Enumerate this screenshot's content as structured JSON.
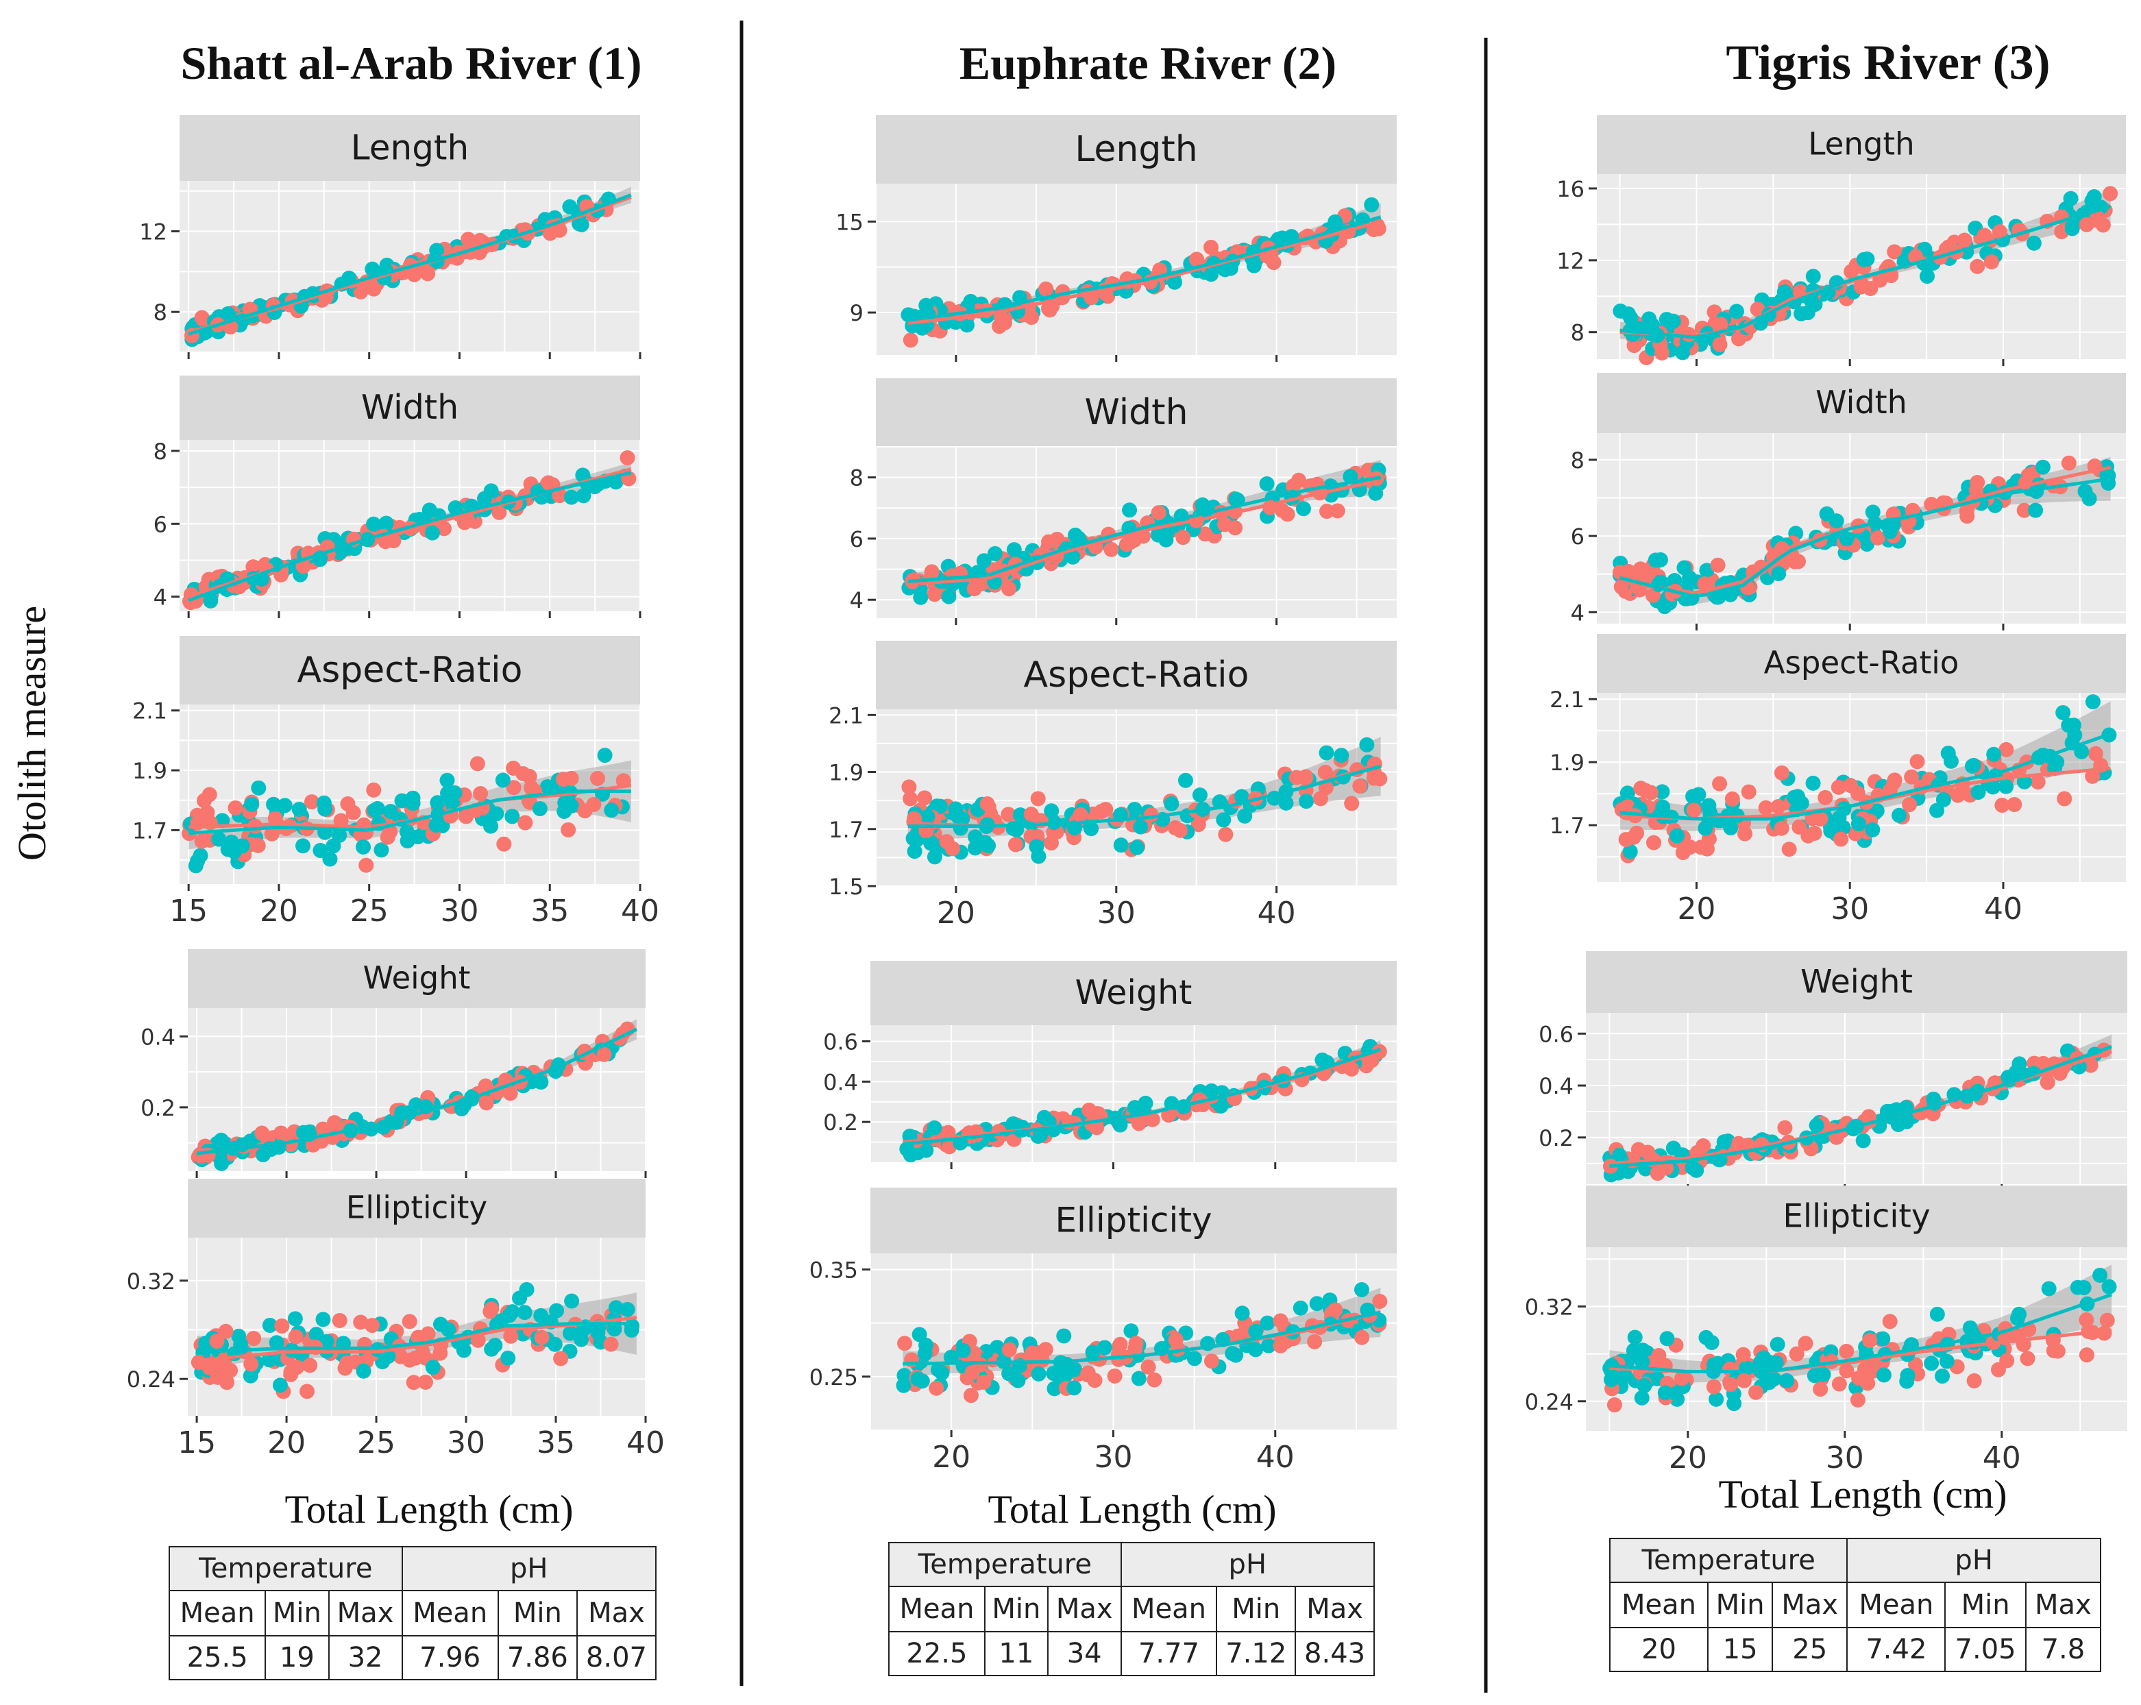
{
  "figure": {
    "ylabel": "Otolith measure",
    "xlabel": "Total Length (cm)",
    "colors": {
      "series_a": "#f8766d",
      "series_b": "#00bfc4",
      "panel_bg": "#ebebeb",
      "strip_bg": "#d9d9d9",
      "grid": "#ffffff",
      "ribbon": "#999999"
    }
  },
  "rivers": [
    {
      "title": "Shatt al-Arab River (1)",
      "table": {
        "headers": [
          "Temperature",
          "pH"
        ],
        "subheaders": [
          "Mean",
          "Min",
          "Max",
          "Mean",
          "Min",
          "Max"
        ],
        "values": [
          "25.5",
          "19",
          "32",
          "7.96",
          "7.86",
          "8.07"
        ]
      }
    },
    {
      "title": "Euphrate River (2)",
      "table": {
        "headers": [
          "Temperature",
          "pH"
        ],
        "subheaders": [
          "Mean",
          "Min",
          "Max",
          "Mean",
          "Min",
          "Max"
        ],
        "values": [
          "22.5",
          "11",
          "34",
          "7.77",
          "7.12",
          "8.43"
        ]
      }
    },
    {
      "title": "Tigris River (3)",
      "table": {
        "headers": [
          "Temperature",
          "pH"
        ],
        "subheaders": [
          "Mean",
          "Min",
          "Max",
          "Mean",
          "Min",
          "Max"
        ],
        "values": [
          "20",
          "15",
          "25",
          "7.42",
          "7.05",
          "7.8"
        ]
      }
    }
  ],
  "chart_data": [
    {
      "type": "scatter",
      "river": "Shatt al-Arab River (1)",
      "title": "Length",
      "xlim": [
        14.5,
        40
      ],
      "ylim": [
        6,
        14.5
      ],
      "yticks": [
        8,
        12
      ],
      "xticks": [
        15,
        20,
        25,
        30,
        35,
        40
      ],
      "show_x_tick_labels": false,
      "x_range": [
        15,
        39.5
      ],
      "trend_a": [
        [
          15,
          7.0
        ],
        [
          20,
          8.2
        ],
        [
          25,
          9.6
        ],
        [
          30,
          10.9
        ],
        [
          35,
          12.2
        ],
        [
          39.5,
          13.7
        ]
      ],
      "trend_b": [
        [
          15,
          6.9
        ],
        [
          20,
          8.3
        ],
        [
          25,
          9.7
        ],
        [
          30,
          10.9
        ],
        [
          35,
          12.3
        ],
        [
          39.5,
          13.8
        ]
      ],
      "spread": 0.35,
      "n": 90
    },
    {
      "type": "scatter",
      "river": "Shatt al-Arab River (1)",
      "title": "Width",
      "xlim": [
        14.5,
        40
      ],
      "ylim": [
        3.6,
        8.3
      ],
      "yticks": [
        4,
        6,
        8
      ],
      "xticks": [
        15,
        20,
        25,
        30,
        35,
        40
      ],
      "show_x_tick_labels": false,
      "x_range": [
        15,
        39.5
      ],
      "trend_a": [
        [
          15,
          4.0
        ],
        [
          20,
          4.8
        ],
        [
          25,
          5.6
        ],
        [
          30,
          6.2
        ],
        [
          35,
          6.9
        ],
        [
          39.5,
          7.5
        ]
      ],
      "trend_b": [
        [
          15,
          3.9
        ],
        [
          20,
          4.8
        ],
        [
          25,
          5.6
        ],
        [
          30,
          6.3
        ],
        [
          35,
          6.9
        ],
        [
          39.5,
          7.4
        ]
      ],
      "spread": 0.25,
      "n": 90
    },
    {
      "type": "scatter",
      "river": "Shatt al-Arab River (1)",
      "title": "Aspect-Ratio",
      "xlim": [
        14.5,
        40
      ],
      "ylim": [
        1.52,
        2.12
      ],
      "yticks": [
        1.7,
        1.9,
        2.1
      ],
      "yticklabels": [
        "1.7",
        "1.9",
        "2.1"
      ],
      "xticks": [
        15,
        20,
        25,
        30,
        35,
        40
      ],
      "show_x_tick_labels": true,
      "x_range": [
        15,
        39.5
      ],
      "trend_a": [
        [
          15,
          1.71
        ],
        [
          20,
          1.72
        ],
        [
          25,
          1.71
        ],
        [
          28,
          1.74
        ],
        [
          32,
          1.8
        ],
        [
          36,
          1.82
        ],
        [
          39.5,
          1.85
        ]
      ],
      "trend_b": [
        [
          15,
          1.69
        ],
        [
          20,
          1.71
        ],
        [
          25,
          1.7
        ],
        [
          28,
          1.74
        ],
        [
          32,
          1.8
        ],
        [
          36,
          1.83
        ],
        [
          39.5,
          1.83
        ]
      ],
      "spread": 0.09,
      "n": 80
    },
    {
      "type": "scatter",
      "river": "Shatt al-Arab River (1)",
      "title": "Weight",
      "xlim": [
        14.5,
        40
      ],
      "ylim": [
        0.02,
        0.48
      ],
      "yticks": [
        0.2,
        0.4
      ],
      "xticks": [
        15,
        20,
        25,
        30,
        35,
        40
      ],
      "show_x_tick_labels": false,
      "x_range": [
        15,
        39.5
      ],
      "trend_a": [
        [
          15,
          0.07
        ],
        [
          20,
          0.1
        ],
        [
          25,
          0.15
        ],
        [
          30,
          0.22
        ],
        [
          35,
          0.31
        ],
        [
          39.5,
          0.42
        ]
      ],
      "trend_b": [
        [
          15,
          0.07
        ],
        [
          20,
          0.1
        ],
        [
          25,
          0.15
        ],
        [
          30,
          0.22
        ],
        [
          35,
          0.31
        ],
        [
          39.5,
          0.42
        ]
      ],
      "spread": 0.025,
      "n": 80
    },
    {
      "type": "scatter",
      "river": "Shatt al-Arab River (1)",
      "title": "Ellipticity",
      "xlim": [
        14.5,
        40
      ],
      "ylim": [
        0.21,
        0.355
      ],
      "yticks": [
        0.24,
        0.32
      ],
      "xticks": [
        15,
        20,
        25,
        30,
        35,
        40
      ],
      "show_x_tick_labels": true,
      "x_range": [
        15,
        39.5
      ],
      "trend_a": [
        [
          15,
          0.255
        ],
        [
          20,
          0.262
        ],
        [
          25,
          0.262
        ],
        [
          28,
          0.268
        ],
        [
          32,
          0.28
        ],
        [
          36,
          0.284
        ],
        [
          39.5,
          0.29
        ]
      ],
      "trend_b": [
        [
          15,
          0.262
        ],
        [
          20,
          0.265
        ],
        [
          25,
          0.265
        ],
        [
          28,
          0.27
        ],
        [
          32,
          0.283
        ],
        [
          36,
          0.285
        ],
        [
          39.5,
          0.285
        ]
      ],
      "spread": 0.022,
      "n": 80
    },
    {
      "type": "scatter",
      "river": "Euphrate River (2)",
      "title": "Length",
      "xlim": [
        15,
        47.5
      ],
      "ylim": [
        6.2,
        17.5
      ],
      "yticks": [
        9,
        15
      ],
      "xticks": [
        20,
        30,
        40
      ],
      "show_x_tick_labels": false,
      "x_range": [
        17,
        46.5
      ],
      "trend_a": [
        [
          17,
          8.3
        ],
        [
          22,
          8.9
        ],
        [
          27,
          10.0
        ],
        [
          32,
          11.0
        ],
        [
          37,
          12.4
        ],
        [
          42,
          13.7
        ],
        [
          46.5,
          15.0
        ]
      ],
      "trend_b": [
        [
          17,
          8.5
        ],
        [
          22,
          9.2
        ],
        [
          27,
          10.3
        ],
        [
          32,
          11.2
        ],
        [
          37,
          12.5
        ],
        [
          42,
          13.9
        ],
        [
          46.5,
          15.3
        ]
      ],
      "spread": 0.8,
      "n": 90
    },
    {
      "type": "scatter",
      "river": "Euphrate River (2)",
      "title": "Width",
      "xlim": [
        15,
        47.5
      ],
      "ylim": [
        3.4,
        9.0
      ],
      "yticks": [
        4,
        6,
        8
      ],
      "xticks": [
        20,
        30,
        40
      ],
      "show_x_tick_labels": false,
      "x_range": [
        17,
        46.5
      ],
      "trend_a": [
        [
          17,
          4.5
        ],
        [
          22,
          4.7
        ],
        [
          27,
          5.6
        ],
        [
          32,
          6.3
        ],
        [
          37,
          6.8
        ],
        [
          42,
          7.4
        ],
        [
          46.5,
          7.9
        ]
      ],
      "trend_b": [
        [
          17,
          4.6
        ],
        [
          22,
          4.8
        ],
        [
          27,
          5.7
        ],
        [
          32,
          6.4
        ],
        [
          37,
          7.0
        ],
        [
          42,
          7.6
        ],
        [
          46.5,
          8.0
        ]
      ],
      "spread": 0.5,
      "n": 90
    },
    {
      "type": "scatter",
      "river": "Euphrate River (2)",
      "title": "Aspect-Ratio",
      "xlim": [
        15,
        47.5
      ],
      "ylim": [
        1.5,
        2.12
      ],
      "yticks": [
        1.5,
        1.7,
        1.9,
        2.1
      ],
      "yticklabels": [
        "1.5",
        "1.7",
        "1.9",
        "2.1"
      ],
      "xticks": [
        20,
        30,
        40
      ],
      "show_x_tick_labels": true,
      "x_range": [
        17,
        46.5
      ],
      "trend_a": [
        [
          17,
          1.72
        ],
        [
          22,
          1.71
        ],
        [
          27,
          1.72
        ],
        [
          32,
          1.74
        ],
        [
          37,
          1.78
        ],
        [
          42,
          1.85
        ],
        [
          46.5,
          1.93
        ]
      ],
      "trend_b": [
        [
          17,
          1.71
        ],
        [
          22,
          1.71
        ],
        [
          27,
          1.72
        ],
        [
          32,
          1.74
        ],
        [
          37,
          1.78
        ],
        [
          42,
          1.85
        ],
        [
          46.5,
          1.92
        ]
      ],
      "spread": 0.09,
      "n": 90
    },
    {
      "type": "scatter",
      "river": "Euphrate River (2)",
      "title": "Weight",
      "xlim": [
        15,
        47.5
      ],
      "ylim": [
        0.0,
        0.68
      ],
      "yticks": [
        0.2,
        0.4,
        0.6
      ],
      "xticks": [
        20,
        30,
        40
      ],
      "show_x_tick_labels": false,
      "x_range": [
        17,
        46.5
      ],
      "trend_a": [
        [
          17,
          0.1
        ],
        [
          22,
          0.14
        ],
        [
          27,
          0.18
        ],
        [
          32,
          0.24
        ],
        [
          37,
          0.33
        ],
        [
          42,
          0.43
        ],
        [
          46.5,
          0.55
        ]
      ],
      "trend_b": [
        [
          17,
          0.09
        ],
        [
          22,
          0.13
        ],
        [
          27,
          0.18
        ],
        [
          32,
          0.24
        ],
        [
          37,
          0.33
        ],
        [
          42,
          0.44
        ],
        [
          46.5,
          0.56
        ]
      ],
      "spread": 0.04,
      "n": 90
    },
    {
      "type": "scatter",
      "river": "Euphrate River (2)",
      "title": "Ellipticity",
      "xlim": [
        15,
        47.5
      ],
      "ylim": [
        0.2,
        0.365
      ],
      "yticks": [
        0.25,
        0.35
      ],
      "xticks": [
        20,
        30,
        40
      ],
      "show_x_tick_labels": true,
      "x_range": [
        17,
        46.5
      ],
      "trend_a": [
        [
          17,
          0.262
        ],
        [
          22,
          0.263
        ],
        [
          27,
          0.264
        ],
        [
          32,
          0.27
        ],
        [
          37,
          0.28
        ],
        [
          42,
          0.293
        ],
        [
          46.5,
          0.31
        ]
      ],
      "trend_b": [
        [
          17,
          0.262
        ],
        [
          22,
          0.263
        ],
        [
          27,
          0.264
        ],
        [
          32,
          0.27
        ],
        [
          37,
          0.28
        ],
        [
          42,
          0.295
        ],
        [
          46.5,
          0.31
        ]
      ],
      "spread": 0.02,
      "n": 90
    },
    {
      "type": "scatter",
      "river": "Tigris River (3)",
      "title": "Length",
      "xlim": [
        13.5,
        48
      ],
      "ylim": [
        6.5,
        16.8
      ],
      "yticks": [
        8,
        12,
        16
      ],
      "xticks": [
        20,
        30,
        40
      ],
      "show_x_tick_labels": false,
      "x_range": [
        15,
        47
      ],
      "trend_a": [
        [
          15,
          8.0
        ],
        [
          20,
          7.8
        ],
        [
          23,
          8.2
        ],
        [
          26,
          9.8
        ],
        [
          30,
          10.8
        ],
        [
          35,
          12.0
        ],
        [
          40,
          13.2
        ],
        [
          47,
          15.0
        ]
      ],
      "trend_b": [
        [
          15,
          8.1
        ],
        [
          20,
          7.7
        ],
        [
          23,
          8.3
        ],
        [
          26,
          9.6
        ],
        [
          30,
          10.9
        ],
        [
          35,
          12.0
        ],
        [
          40,
          13.2
        ],
        [
          47,
          15.0
        ]
      ],
      "spread": 0.8,
      "n": 90
    },
    {
      "type": "scatter",
      "river": "Tigris River (3)",
      "title": "Width",
      "xlim": [
        13.5,
        48
      ],
      "ylim": [
        3.7,
        8.7
      ],
      "yticks": [
        4,
        6,
        8
      ],
      "xticks": [
        20,
        30,
        40
      ],
      "show_x_tick_labels": false,
      "x_range": [
        15,
        47
      ],
      "trend_a": [
        [
          15,
          4.8
        ],
        [
          20,
          4.5
        ],
        [
          23,
          4.8
        ],
        [
          26,
          5.7
        ],
        [
          30,
          6.2
        ],
        [
          35,
          6.6
        ],
        [
          40,
          7.2
        ],
        [
          47,
          7.8
        ]
      ],
      "trend_b": [
        [
          15,
          4.9
        ],
        [
          20,
          4.4
        ],
        [
          23,
          4.7
        ],
        [
          26,
          5.6
        ],
        [
          30,
          6.2
        ],
        [
          35,
          6.6
        ],
        [
          40,
          7.1
        ],
        [
          47,
          7.5
        ]
      ],
      "spread": 0.5,
      "n": 90
    },
    {
      "type": "scatter",
      "river": "Tigris River (3)",
      "title": "Aspect-Ratio",
      "xlim": [
        13.5,
        48
      ],
      "ylim": [
        1.52,
        2.12
      ],
      "yticks": [
        1.7,
        1.9,
        2.1
      ],
      "yticklabels": [
        "1.7",
        "1.9",
        "2.1"
      ],
      "xticks": [
        20,
        30,
        40
      ],
      "show_x_tick_labels": true,
      "x_range": [
        15,
        47
      ],
      "trend_a": [
        [
          15,
          1.73
        ],
        [
          20,
          1.72
        ],
        [
          25,
          1.73
        ],
        [
          30,
          1.76
        ],
        [
          35,
          1.81
        ],
        [
          40,
          1.85
        ],
        [
          47,
          1.88
        ]
      ],
      "trend_b": [
        [
          15,
          1.74
        ],
        [
          20,
          1.72
        ],
        [
          25,
          1.72
        ],
        [
          30,
          1.76
        ],
        [
          35,
          1.82
        ],
        [
          40,
          1.87
        ],
        [
          47,
          1.99
        ]
      ],
      "spread": 0.09,
      "n": 90
    },
    {
      "type": "scatter",
      "river": "Tigris River (3)",
      "title": "Weight",
      "xlim": [
        13.5,
        48
      ],
      "ylim": [
        0.02,
        0.68
      ],
      "yticks": [
        0.2,
        0.4,
        0.6
      ],
      "xticks": [
        20,
        30,
        40
      ],
      "show_x_tick_labels": false,
      "x_range": [
        15,
        47
      ],
      "trend_a": [
        [
          15,
          0.1
        ],
        [
          20,
          0.12
        ],
        [
          25,
          0.17
        ],
        [
          30,
          0.23
        ],
        [
          35,
          0.31
        ],
        [
          40,
          0.4
        ],
        [
          47,
          0.53
        ]
      ],
      "trend_b": [
        [
          15,
          0.09
        ],
        [
          20,
          0.11
        ],
        [
          25,
          0.16
        ],
        [
          30,
          0.23
        ],
        [
          35,
          0.31
        ],
        [
          40,
          0.4
        ],
        [
          47,
          0.55
        ]
      ],
      "spread": 0.04,
      "n": 90
    },
    {
      "type": "scatter",
      "river": "Tigris River (3)",
      "title": "Ellipticity",
      "xlim": [
        13.5,
        48
      ],
      "ylim": [
        0.215,
        0.37
      ],
      "yticks": [
        0.24,
        0.32
      ],
      "xticks": [
        20,
        30,
        40
      ],
      "show_x_tick_labels": true,
      "x_range": [
        15,
        47
      ],
      "trend_a": [
        [
          15,
          0.268
        ],
        [
          20,
          0.265
        ],
        [
          25,
          0.265
        ],
        [
          30,
          0.272
        ],
        [
          35,
          0.282
        ],
        [
          40,
          0.29
        ],
        [
          47,
          0.3
        ]
      ],
      "trend_b": [
        [
          15,
          0.27
        ],
        [
          20,
          0.265
        ],
        [
          25,
          0.265
        ],
        [
          30,
          0.274
        ],
        [
          35,
          0.285
        ],
        [
          40,
          0.298
        ],
        [
          47,
          0.33
        ]
      ],
      "spread": 0.022,
      "n": 90
    }
  ]
}
